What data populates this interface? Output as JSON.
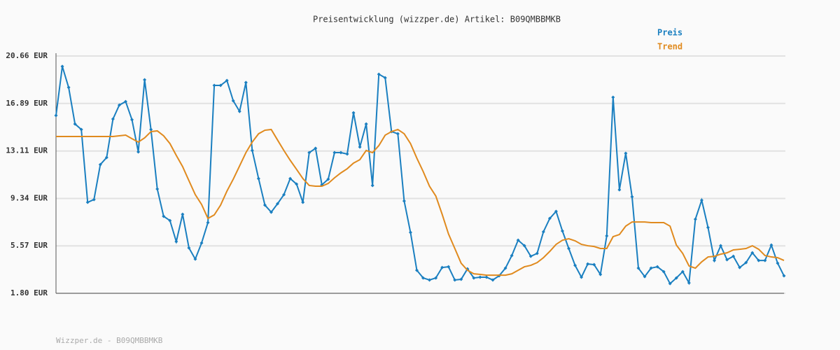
{
  "chart_data": {
    "type": "line",
    "title": "Preisentwicklung (wizzper.de) Artikel: B09QMBBMKB",
    "footer": "Wizzper.de - B09QMBBMKB",
    "legend": "top-right",
    "grid": true,
    "ylim": [
      1.8,
      20.66
    ],
    "yticks": [
      {
        "value": 1.8,
        "label": "1.80 EUR"
      },
      {
        "value": 5.57,
        "label": "5.57 EUR"
      },
      {
        "value": 9.34,
        "label": "9.34 EUR"
      },
      {
        "value": 13.11,
        "label": "13.11 EUR"
      },
      {
        "value": 16.89,
        "label": "16.89 EUR"
      },
      {
        "value": 20.66,
        "label": "20.66 EUR"
      }
    ],
    "series": [
      {
        "name": "Preis",
        "color": "#1a7fc0",
        "markers": true,
        "values": [
          15.93,
          19.83,
          18.16,
          15.26,
          14.82,
          9.03,
          9.25,
          12.03,
          12.59,
          15.65,
          16.76,
          17.04,
          15.6,
          13.04,
          18.77,
          14.82,
          10.09,
          7.92,
          7.58,
          5.91,
          8.08,
          5.41,
          4.52,
          5.8,
          7.42,
          18.32,
          18.32,
          18.71,
          17.1,
          16.26,
          18.55,
          13.15,
          10.92,
          8.81,
          8.25,
          8.92,
          9.64,
          10.92,
          10.48,
          9.03,
          12.98,
          13.32,
          10.42,
          10.87,
          12.98,
          12.98,
          12.87,
          16.15,
          13.43,
          15.26,
          10.37,
          19.21,
          18.93,
          14.65,
          14.48,
          9.14,
          6.64,
          3.63,
          3.02,
          2.86,
          3.02,
          3.85,
          3.91,
          2.86,
          2.91,
          3.74,
          3.02,
          3.08,
          3.08,
          2.86,
          3.19,
          3.8,
          4.8,
          6.02,
          5.58,
          4.74,
          4.97,
          6.69,
          7.75,
          8.31,
          6.75,
          5.36,
          4.02,
          3.08,
          4.13,
          4.08,
          3.3,
          6.36,
          17.38,
          10.03,
          12.93,
          9.47,
          3.8,
          3.13,
          3.8,
          3.91,
          3.52,
          2.57,
          3.02,
          3.52,
          2.63,
          7.69,
          9.2,
          7.03,
          4.41,
          5.58,
          4.47,
          4.74,
          3.85,
          4.24,
          5.02,
          4.41,
          4.41,
          5.63,
          4.19,
          3.19
        ]
      },
      {
        "name": "Trend",
        "color": "#e08a1e",
        "markers": false,
        "values": [
          14.26,
          14.26,
          14.26,
          14.26,
          14.26,
          14.26,
          14.26,
          14.26,
          14.26,
          14.26,
          14.32,
          14.37,
          14.09,
          13.82,
          14.15,
          14.65,
          14.71,
          14.32,
          13.7,
          12.76,
          11.87,
          10.75,
          9.64,
          8.86,
          7.75,
          8.03,
          8.81,
          9.92,
          10.87,
          11.92,
          12.98,
          13.82,
          14.48,
          14.76,
          14.82,
          13.98,
          13.15,
          12.37,
          11.65,
          10.92,
          10.37,
          10.31,
          10.31,
          10.53,
          10.98,
          11.37,
          11.7,
          12.15,
          12.42,
          13.15,
          12.98,
          13.54,
          14.37,
          14.65,
          14.82,
          14.48,
          13.7,
          12.54,
          11.48,
          10.31,
          9.53,
          8.08,
          6.52,
          5.36,
          4.19,
          3.63,
          3.35,
          3.3,
          3.24,
          3.24,
          3.24,
          3.24,
          3.35,
          3.63,
          3.91,
          4.02,
          4.24,
          4.63,
          5.13,
          5.69,
          6.02,
          6.14,
          5.97,
          5.69,
          5.58,
          5.52,
          5.36,
          5.36,
          6.3,
          6.47,
          7.14,
          7.47,
          7.47,
          7.47,
          7.42,
          7.42,
          7.42,
          7.14,
          5.63,
          4.97,
          3.97,
          3.8,
          4.3,
          4.69,
          4.74,
          4.91,
          5.02,
          5.25,
          5.3,
          5.36,
          5.58,
          5.3,
          4.8,
          4.69,
          4.63,
          4.41
        ]
      }
    ]
  }
}
